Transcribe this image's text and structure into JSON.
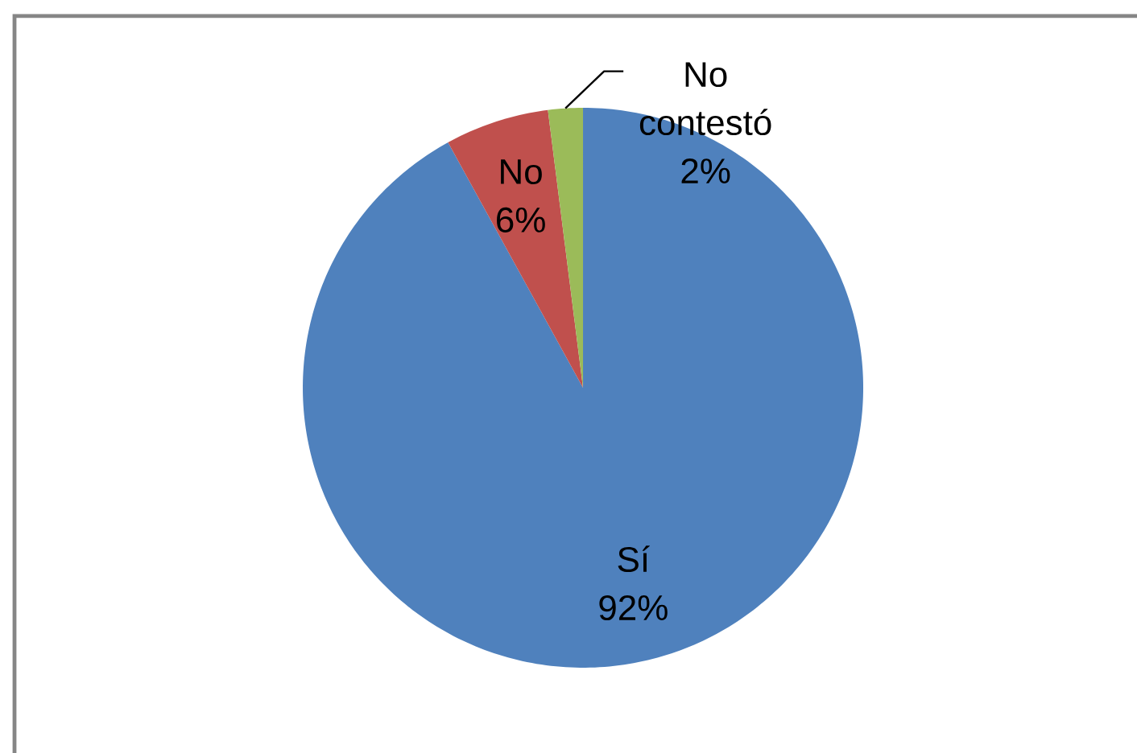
{
  "chart_data": {
    "type": "pie",
    "categories": [
      "Sí",
      "No",
      "No contestó"
    ],
    "values": [
      92,
      6,
      2
    ],
    "value_labels": [
      "92%",
      "6%",
      "2%"
    ],
    "colors": [
      "#4f81bd",
      "#c0504d",
      "#9bbb59"
    ]
  }
}
